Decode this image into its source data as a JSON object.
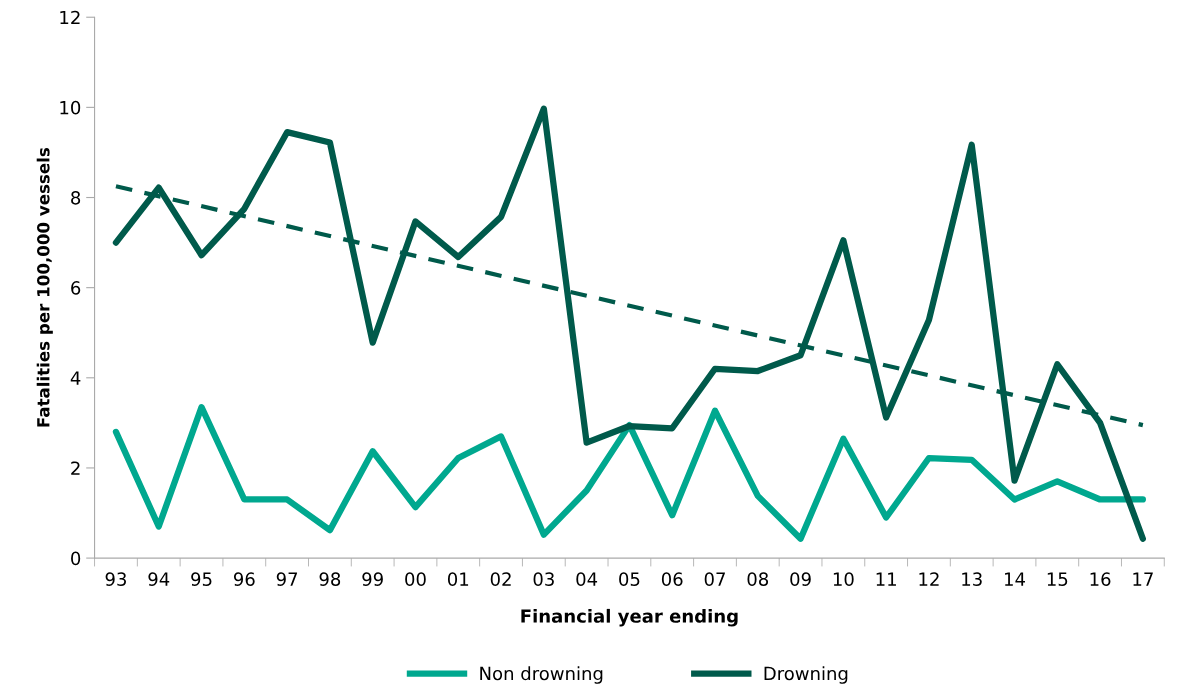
{
  "chart_data": {
    "type": "line",
    "xlabel": "Financial year ending",
    "ylabel": "Fatalities per 100,000 vessels",
    "categories": [
      "93",
      "94",
      "95",
      "96",
      "97",
      "98",
      "99",
      "00",
      "01",
      "02",
      "03",
      "04",
      "05",
      "06",
      "07",
      "08",
      "09",
      "10",
      "11",
      "12",
      "13",
      "14",
      "15",
      "16",
      "17"
    ],
    "series": [
      {
        "name": "Non drowning",
        "color": "#00a88f",
        "values": [
          2.8,
          0.7,
          3.35,
          1.3,
          1.3,
          0.62,
          2.37,
          1.13,
          2.22,
          2.7,
          0.52,
          1.5,
          2.95,
          0.95,
          3.27,
          1.38,
          0.43,
          2.65,
          0.9,
          2.22,
          2.18,
          1.3,
          1.7,
          1.3,
          1.3
        ]
      },
      {
        "name": "Drowning",
        "color": "#005a4b",
        "values": [
          7.0,
          8.22,
          6.72,
          7.75,
          9.45,
          9.22,
          4.78,
          7.47,
          6.68,
          7.57,
          9.97,
          2.56,
          2.93,
          2.88,
          4.2,
          4.15,
          4.5,
          7.05,
          3.12,
          5.28,
          9.17,
          1.72,
          4.3,
          3.0,
          0.43
        ]
      },
      {
        "type": "line",
        "color": "#005a4b",
        "line_style": "dashed",
        "x": [
          "93",
          "17"
        ],
        "values": [
          8.25,
          2.95
        ]
      }
    ],
    "ylim": [
      0,
      12
    ],
    "yticks": [
      0,
      2,
      4,
      6,
      8,
      10,
      12
    ],
    "grid": false,
    "legend": "bottom",
    "marker": "none",
    "line_style": "solid"
  }
}
